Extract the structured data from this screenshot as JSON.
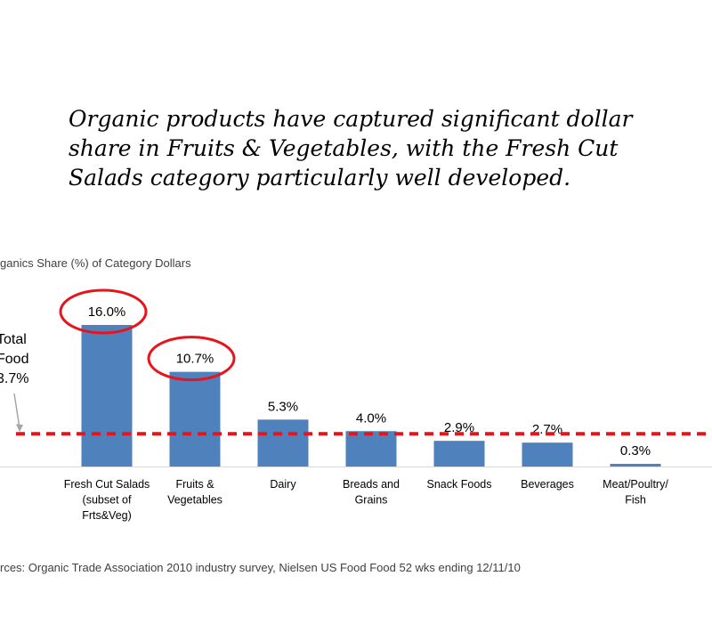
{
  "headline": "Organic products have captured significant dollar share in Fruits & Vegetables, with the Fresh Cut Salads category particularly well developed.",
  "chart_data": {
    "type": "bar",
    "title": "ganics Share (%) of Category Dollars",
    "categories": [
      [
        "Fresh Cut Salads",
        "(subset of",
        "Frts&Veg)"
      ],
      [
        "Fruits &",
        "Vegetables"
      ],
      [
        "Dairy"
      ],
      [
        "Breads and",
        "Grains"
      ],
      [
        "Snack Foods"
      ],
      [
        "Beverages"
      ],
      [
        "Meat/Poultry/",
        "Fish"
      ]
    ],
    "values": [
      16.0,
      10.7,
      5.3,
      4.0,
      2.9,
      2.7,
      0.3
    ],
    "data_labels": [
      "16.0%",
      "10.7%",
      "5.3%",
      "4.0%",
      "2.9%",
      "2.7%",
      "0.3%"
    ],
    "ylim": [
      0,
      18
    ],
    "highlighted_categories": [
      0,
      1
    ],
    "reference_line": {
      "label": "Total\nFood\n3.7%",
      "value": 3.7
    },
    "colors": {
      "bar": "#4f81bd",
      "reference_line": "#e8141b",
      "highlight_ring": "#e8141b",
      "arrow": "#a6a6a6"
    }
  },
  "source": "rces: Organic Trade Association 2010 industry survey, Nielsen US Food Food 52 wks ending 12/11/10"
}
